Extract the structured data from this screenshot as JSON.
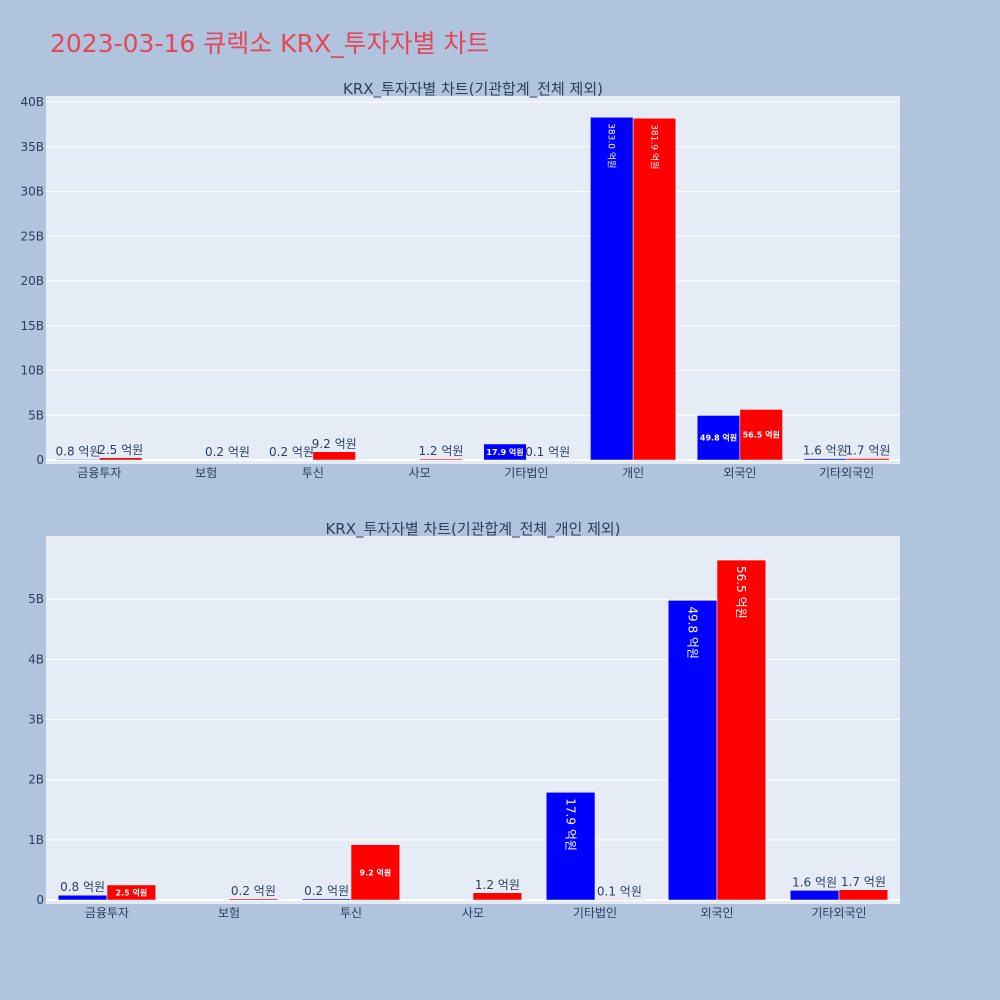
{
  "page": {
    "title": "2023-03-16 큐렉소 KRX_투자자별 차트"
  },
  "colors": {
    "background": "#b0c4de",
    "plot_bg": "#e5ecf6",
    "title": "#e5465a",
    "buy": "#0000ff",
    "sell": "#ff0000",
    "text": "#2a3f5f"
  },
  "chart_data": [
    {
      "type": "bar",
      "title": "KRX_투자자별 차트(기관합계_전체 제외)",
      "categories": [
        "금융투자",
        "보험",
        "투신",
        "사모",
        "기타법인",
        "개인",
        "외국인",
        "기타외국인"
      ],
      "ylim": [
        0,
        40000000000
      ],
      "yticks": [
        0,
        5000000000,
        10000000000,
        15000000000,
        20000000000,
        25000000000,
        30000000000,
        35000000000,
        40000000000
      ],
      "ytick_labels": [
        "0",
        "5B",
        "10B",
        "15B",
        "20B",
        "25B",
        "30B",
        "35B",
        "40B"
      ],
      "grid": true,
      "series": [
        {
          "color": "#0000ff",
          "values": [
            80000000,
            0,
            20000000,
            0,
            1790000000,
            38300000000,
            4980000000,
            160000000
          ],
          "labels": [
            "0.8 억원",
            "",
            "0.2 억원",
            "",
            "17.9 억원",
            "383.0 억원",
            "49.8 억원",
            "1.6 억원"
          ]
        },
        {
          "color": "#ff0000",
          "values": [
            250000000,
            20000000,
            920000000,
            120000000,
            10000000,
            38190000000,
            5650000000,
            170000000
          ],
          "labels": [
            "2.5 억원",
            "0.2 억원",
            "9.2 억원",
            "1.2 억원",
            "0.1 억원",
            "381.9 억원",
            "56.5 억원",
            "1.7 억원"
          ]
        }
      ]
    },
    {
      "type": "bar",
      "title": "KRX_투자자별 차트(기관합계_전체_개인 제외)",
      "categories": [
        "금융투자",
        "보험",
        "투신",
        "사모",
        "기타법인",
        "외국인",
        "기타외국인"
      ],
      "ylim": [
        0,
        5950000000
      ],
      "yticks": [
        0,
        1000000000,
        2000000000,
        3000000000,
        4000000000,
        5000000000
      ],
      "ytick_labels": [
        "0",
        "1B",
        "2B",
        "3B",
        "4B",
        "5B"
      ],
      "grid": true,
      "series": [
        {
          "color": "#0000ff",
          "values": [
            80000000,
            0,
            20000000,
            0,
            1790000000,
            4980000000,
            160000000
          ],
          "labels": [
            "0.8 억원",
            "",
            "0.2 억원",
            "",
            "17.9 억원",
            "49.8 억원",
            "1.6 억원"
          ]
        },
        {
          "color": "#ff0000",
          "values": [
            250000000,
            20000000,
            920000000,
            120000000,
            10000000,
            5650000000,
            170000000
          ],
          "labels": [
            "2.5 억원",
            "0.2 억원",
            "9.2 억원",
            "1.2 억원",
            "0.1 억원",
            "56.5 억원",
            "1.7 억원"
          ]
        }
      ]
    }
  ]
}
